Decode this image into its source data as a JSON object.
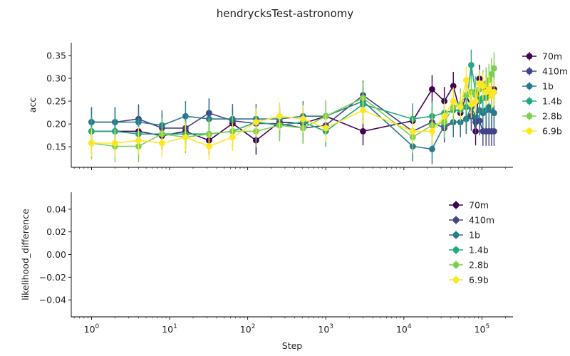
{
  "figure": {
    "title": "hendrycksTest-astronomy"
  },
  "chart_data": [
    {
      "type": "line",
      "xlabel": "",
      "ylabel": "acc",
      "xscale": "log",
      "xlim": [
        0.55,
        250000
      ],
      "ylim": [
        0.105,
        0.378
      ],
      "yticks": [
        "0.15",
        "0.20",
        "0.25",
        "0.30",
        "0.35"
      ],
      "xticks": [
        "10^0",
        "10^1",
        "10^2",
        "10^3",
        "10^4",
        "10^5"
      ],
      "legend": "outside-right",
      "series": [
        {
          "name": "70m",
          "color": "#440154",
          "x": [
            1,
            2,
            4,
            8,
            16,
            32,
            64,
            128,
            256,
            512,
            1000,
            3000,
            13000,
            23000,
            33000,
            43000,
            53000,
            63000,
            73000,
            83000,
            93000,
            103000,
            113000,
            123000,
            133000,
            143000
          ],
          "y": [
            0.184,
            0.184,
            0.184,
            0.174,
            0.184,
            0.164,
            0.201,
            0.164,
            0.204,
            0.201,
            0.217,
            0.184,
            0.207,
            0.276,
            0.25,
            0.283,
            0.224,
            0.263,
            0.237,
            0.184,
            0.299,
            0.283,
            0.276,
            0.263,
            0.27,
            0.276
          ],
          "err": 0.031
        },
        {
          "name": "410m",
          "color": "#414487",
          "x": [
            1,
            2,
            4,
            8,
            16,
            32,
            64,
            128,
            256,
            512,
            1000,
            3000,
            13000,
            23000,
            33000,
            43000,
            53000,
            63000,
            73000,
            83000,
            93000,
            103000,
            113000,
            123000,
            133000,
            143000
          ],
          "y": [
            0.204,
            0.204,
            0.211,
            0.191,
            0.191,
            0.224,
            0.207,
            0.201,
            0.201,
            0.191,
            0.197,
            0.263,
            0.184,
            0.204,
            0.191,
            0.204,
            0.204,
            0.211,
            0.217,
            0.204,
            0.207,
            0.184,
            0.184,
            0.184,
            0.184,
            0.184
          ],
          "err": 0.032
        },
        {
          "name": "1b",
          "color": "#2a788e",
          "x": [
            1,
            2,
            4,
            8,
            16,
            32,
            64,
            128,
            256,
            512,
            1000,
            3000,
            13000,
            23000,
            33000,
            43000,
            53000,
            63000,
            73000,
            83000,
            93000,
            103000,
            113000,
            123000,
            133000,
            143000
          ],
          "y": [
            0.204,
            0.204,
            0.204,
            0.197,
            0.217,
            0.211,
            0.211,
            0.211,
            0.211,
            0.217,
            0.217,
            0.25,
            0.151,
            0.145,
            0.197,
            0.204,
            0.204,
            0.211,
            0.237,
            0.217,
            0.23,
            0.224,
            0.23,
            0.237,
            0.23,
            0.224
          ],
          "err": 0.033
        },
        {
          "name": "1.4b",
          "color": "#22a884",
          "x": [
            1,
            2,
            4,
            8,
            16,
            32,
            64,
            128,
            256,
            512,
            1000,
            3000,
            13000,
            23000,
            33000,
            43000,
            53000,
            63000,
            73000,
            83000,
            93000,
            103000,
            113000,
            123000,
            133000,
            143000
          ],
          "y": [
            0.184,
            0.184,
            0.178,
            0.178,
            0.178,
            0.178,
            0.184,
            0.204,
            0.197,
            0.204,
            0.184,
            0.243,
            0.211,
            0.217,
            0.224,
            0.23,
            0.23,
            0.237,
            0.329,
            0.27,
            0.25,
            0.257,
            0.257,
            0.276,
            0.263,
            0.27
          ],
          "err": 0.034
        },
        {
          "name": "2.8b",
          "color": "#7ad151",
          "x": [
            1,
            2,
            4,
            8,
            16,
            32,
            64,
            128,
            256,
            512,
            1000,
            3000,
            13000,
            23000,
            33000,
            43000,
            53000,
            63000,
            73000,
            83000,
            93000,
            103000,
            113000,
            123000,
            133000,
            143000
          ],
          "y": [
            0.158,
            0.151,
            0.151,
            0.178,
            0.171,
            0.178,
            0.184,
            0.184,
            0.197,
            0.191,
            0.217,
            0.257,
            0.171,
            0.197,
            0.204,
            0.237,
            0.243,
            0.263,
            0.27,
            0.263,
            0.276,
            0.283,
            0.289,
            0.296,
            0.309,
            0.322
          ],
          "err": 0.035
        },
        {
          "name": "6.9b",
          "color": "#fde725",
          "x": [
            1,
            2,
            4,
            8,
            16,
            32,
            64,
            128,
            256,
            512,
            1000,
            3000,
            13000,
            23000,
            33000,
            43000,
            53000,
            63000,
            73000,
            83000,
            93000,
            103000,
            113000,
            123000,
            133000,
            143000
          ],
          "y": [
            0.158,
            0.158,
            0.164,
            0.158,
            0.171,
            0.151,
            0.171,
            0.204,
            0.217,
            0.211,
            0.191,
            0.23,
            0.184,
            0.184,
            0.217,
            0.25,
            0.237,
            0.296,
            0.243,
            0.25,
            0.289,
            0.283,
            0.27,
            0.276,
            0.263,
            0.27
          ],
          "err": 0.03
        }
      ]
    },
    {
      "type": "line",
      "xlabel": "Step",
      "ylabel": "likelihood_difference",
      "xscale": "log",
      "xlim": [
        0.55,
        250000
      ],
      "ylim": [
        -0.055,
        0.055
      ],
      "yticks": [
        "−0.04",
        "−0.02",
        "0.00",
        "0.02",
        "0.04"
      ],
      "xticks": [
        "10^0",
        "10^1",
        "10^2",
        "10^3",
        "10^4",
        "10^5"
      ],
      "legend": "upper-right",
      "series": [
        {
          "name": "70m",
          "color": "#440154",
          "x": [],
          "y": []
        },
        {
          "name": "410m",
          "color": "#414487",
          "x": [],
          "y": []
        },
        {
          "name": "1b",
          "color": "#2a788e",
          "x": [],
          "y": []
        },
        {
          "name": "1.4b",
          "color": "#22a884",
          "x": [],
          "y": []
        },
        {
          "name": "2.8b",
          "color": "#7ad151",
          "x": [],
          "y": []
        },
        {
          "name": "6.9b",
          "color": "#fde725",
          "x": [],
          "y": []
        }
      ]
    }
  ]
}
